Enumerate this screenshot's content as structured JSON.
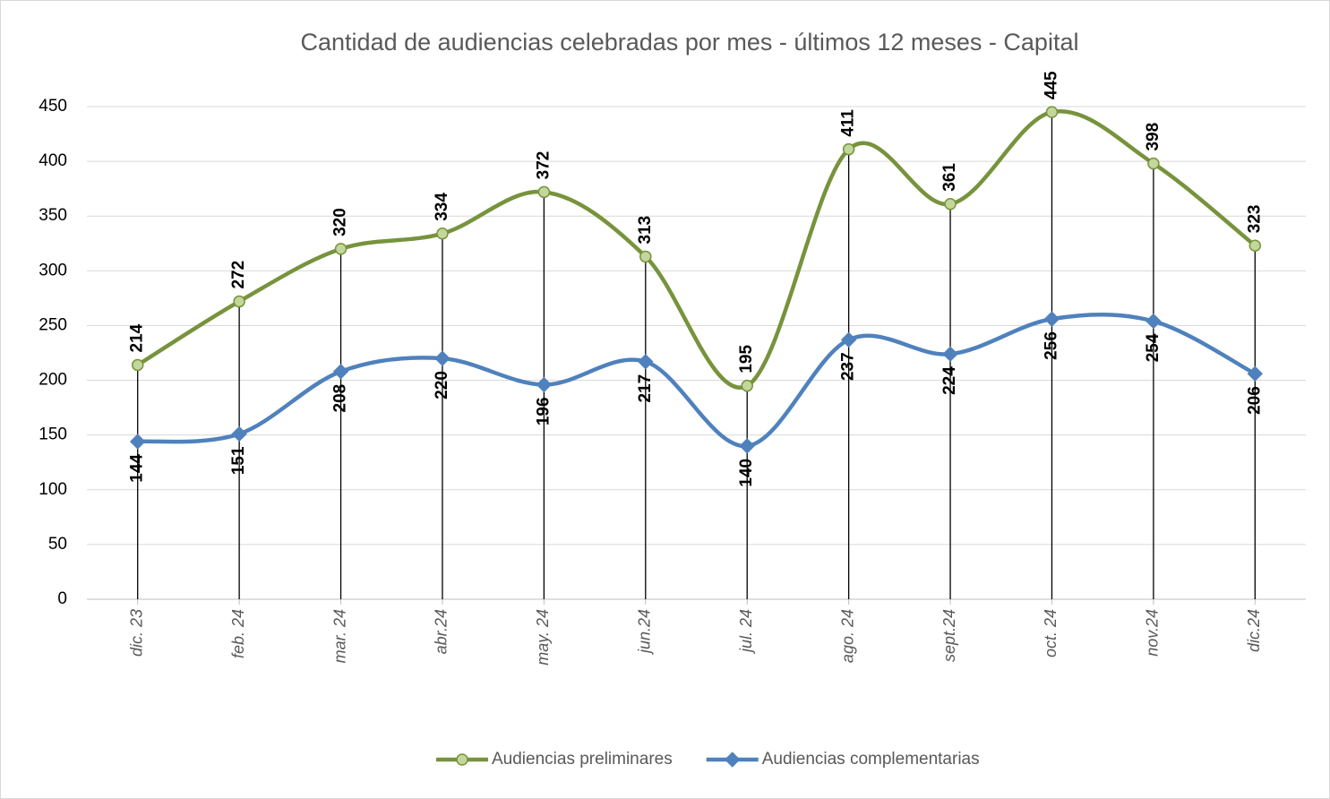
{
  "chart_data": {
    "type": "line",
    "title": "Cantidad de audiencias celebradas por mes - últimos 12 meses - Capital",
    "categories": [
      "dic. 23",
      "feb. 24",
      "mar. 24",
      "abr.24",
      "may. 24",
      "jun.24",
      "jul. 24",
      "ago. 24",
      "sept.24",
      "oct. 24",
      "nov.24",
      "dic.24"
    ],
    "series": [
      {
        "name": "Audiencias preliminares",
        "color": "#77933c",
        "values": [
          214,
          272,
          320,
          334,
          372,
          313,
          195,
          411,
          361,
          445,
          398,
          323
        ]
      },
      {
        "name": "Audiencias complementarias",
        "color": "#4f81bd",
        "values": [
          144,
          151,
          208,
          220,
          196,
          217,
          140,
          237,
          224,
          256,
          254,
          206
        ]
      }
    ],
    "ylim": [
      0,
      450
    ],
    "yticks": [
      0,
      50,
      100,
      150,
      200,
      250,
      300,
      350,
      400,
      450
    ],
    "grid": true,
    "smooth": true,
    "legend": "bottom"
  }
}
